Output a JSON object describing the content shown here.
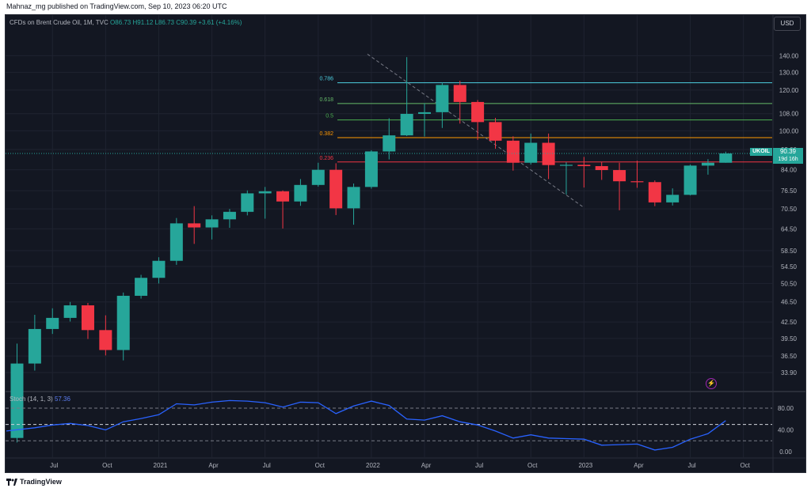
{
  "publisher": "Mahnaz_mg published on TradingView.com, Sep 10, 2023 06:20 UTC",
  "legend": {
    "symbol": "CFDs on Brent Crude Oil, 1M, TVC",
    "open": "O86.73",
    "high": "H91.12",
    "low": "L86.73",
    "close": "C90.39",
    "change": "+3.61 (+4.16%)"
  },
  "currency_button": "USD",
  "price_tag": {
    "symbol": "UKOIL",
    "price": "90.39",
    "countdown": "19d 16h"
  },
  "stoch_legend": {
    "label": "Stoch (14, 1, 3)",
    "value": "57.36"
  },
  "footer_brand": "TradingView",
  "colors": {
    "bg": "#131722",
    "up": "#26a69a",
    "down": "#f23645",
    "stoch": "#2962ff",
    "grid": "#1f2330"
  },
  "chart_data": [
    {
      "type": "candlestick",
      "title": "CFDs on Brent Crude Oil, 1M, TVC",
      "y_ticks": [
        "140.00",
        "130.00",
        "120.00",
        "108.00",
        "100.00",
        "92.00",
        "84.00",
        "76.50",
        "70.50",
        "64.50",
        "58.50",
        "54.50",
        "50.50",
        "46.50",
        "42.50",
        "39.50",
        "36.50",
        "33.90"
      ],
      "x_ticks": [
        "Jul",
        "Oct",
        "2021",
        "Apr",
        "Jul",
        "Oct",
        "2022",
        "Apr",
        "Jul",
        "Oct",
        "2023",
        "Apr",
        "Jul",
        "Oct"
      ],
      "scale": "log",
      "ylim": [
        32,
        150
      ],
      "ohlc": [
        {
          "t": "2020-05",
          "o": 25.3,
          "h": 38.6,
          "l": 24.8,
          "c": 35.3
        },
        {
          "t": "2020-06",
          "o": 35.3,
          "h": 43.9,
          "l": 34.2,
          "c": 41.2
        },
        {
          "t": "2020-07",
          "o": 41.2,
          "h": 45.2,
          "l": 40.3,
          "c": 43.3
        },
        {
          "t": "2020-08",
          "o": 43.3,
          "h": 46.5,
          "l": 42.6,
          "c": 45.8
        },
        {
          "t": "2020-09",
          "o": 45.8,
          "h": 46.3,
          "l": 39.4,
          "c": 41.0
        },
        {
          "t": "2020-10",
          "o": 41.0,
          "h": 43.8,
          "l": 36.6,
          "c": 37.5
        },
        {
          "t": "2020-11",
          "o": 37.5,
          "h": 48.5,
          "l": 35.8,
          "c": 47.8
        },
        {
          "t": "2020-12",
          "o": 47.8,
          "h": 52.5,
          "l": 47.2,
          "c": 51.8
        },
        {
          "t": "2021-01",
          "o": 51.8,
          "h": 56.8,
          "l": 50.5,
          "c": 55.9
        },
        {
          "t": "2021-02",
          "o": 55.9,
          "h": 67.7,
          "l": 54.9,
          "c": 66.1
        },
        {
          "t": "2021-03",
          "o": 66.1,
          "h": 71.4,
          "l": 60.3,
          "c": 64.9
        },
        {
          "t": "2021-04",
          "o": 64.9,
          "h": 68.5,
          "l": 61.5,
          "c": 67.3
        },
        {
          "t": "2021-05",
          "o": 67.3,
          "h": 70.5,
          "l": 64.8,
          "c": 69.6
        },
        {
          "t": "2021-06",
          "o": 69.6,
          "h": 76.6,
          "l": 68.5,
          "c": 75.6
        },
        {
          "t": "2021-07",
          "o": 75.6,
          "h": 77.8,
          "l": 67.5,
          "c": 76.3
        },
        {
          "t": "2021-08",
          "o": 76.3,
          "h": 76.6,
          "l": 64.6,
          "c": 72.9
        },
        {
          "t": "2021-09",
          "o": 72.9,
          "h": 80.6,
          "l": 71.5,
          "c": 78.5
        },
        {
          "t": "2021-10",
          "o": 78.5,
          "h": 86.7,
          "l": 77.9,
          "c": 84.0
        },
        {
          "t": "2021-11",
          "o": 84.0,
          "h": 86.5,
          "l": 68.6,
          "c": 70.7
        },
        {
          "t": "2021-12",
          "o": 70.7,
          "h": 79.0,
          "l": 65.7,
          "c": 77.8
        },
        {
          "t": "2022-01",
          "o": 77.8,
          "h": 91.7,
          "l": 77.2,
          "c": 91.2
        },
        {
          "t": "2022-02",
          "o": 91.2,
          "h": 105.8,
          "l": 88.0,
          "c": 98.0
        },
        {
          "t": "2022-03",
          "o": 98.0,
          "h": 139.1,
          "l": 97.7,
          "c": 107.9
        },
        {
          "t": "2022-04",
          "o": 107.9,
          "h": 113.1,
          "l": 97.5,
          "c": 108.7
        },
        {
          "t": "2022-05",
          "o": 108.7,
          "h": 124.0,
          "l": 101.3,
          "c": 122.8
        },
        {
          "t": "2022-06",
          "o": 122.8,
          "h": 125.1,
          "l": 103.3,
          "c": 113.8
        },
        {
          "t": "2022-07",
          "o": 113.8,
          "h": 114.8,
          "l": 96.0,
          "c": 104.0
        },
        {
          "t": "2022-08",
          "o": 104.0,
          "h": 106.0,
          "l": 92.3,
          "c": 95.7
        },
        {
          "t": "2022-09",
          "o": 95.7,
          "h": 97.6,
          "l": 83.7,
          "c": 86.7
        },
        {
          "t": "2022-10",
          "o": 86.7,
          "h": 98.8,
          "l": 86.0,
          "c": 94.8
        },
        {
          "t": "2022-11",
          "o": 94.8,
          "h": 98.8,
          "l": 80.6,
          "c": 85.8
        },
        {
          "t": "2022-12",
          "o": 85.8,
          "h": 86.9,
          "l": 75.2,
          "c": 85.9
        },
        {
          "t": "2023-01",
          "o": 85.9,
          "h": 89.0,
          "l": 77.6,
          "c": 85.4
        },
        {
          "t": "2023-02",
          "o": 85.4,
          "h": 87.0,
          "l": 80.3,
          "c": 83.9
        },
        {
          "t": "2023-03",
          "o": 83.9,
          "h": 86.7,
          "l": 70.1,
          "c": 79.8
        },
        {
          "t": "2023-04",
          "o": 79.8,
          "h": 87.5,
          "l": 77.5,
          "c": 79.5
        },
        {
          "t": "2023-05",
          "o": 79.5,
          "h": 80.1,
          "l": 71.4,
          "c": 72.6
        },
        {
          "t": "2023-06",
          "o": 72.6,
          "h": 77.3,
          "l": 71.6,
          "c": 75.1
        },
        {
          "t": "2023-07",
          "o": 75.1,
          "h": 86.0,
          "l": 74.9,
          "c": 85.6
        },
        {
          "t": "2023-08",
          "o": 85.6,
          "h": 88.1,
          "l": 82.2,
          "c": 86.7
        },
        {
          "t": "2023-09",
          "o": 86.7,
          "h": 91.1,
          "l": 86.7,
          "c": 90.4
        }
      ],
      "fib_levels": [
        {
          "label": "0.786",
          "price": 124.0,
          "color": "#4dd0e1"
        },
        {
          "label": "0.618",
          "price": 113.0,
          "color": "#66bb6a"
        },
        {
          "label": "0.5",
          "price": 105.0,
          "color": "#4caf50"
        },
        {
          "label": "0.382",
          "price": 97.0,
          "color": "#ff9800"
        },
        {
          "label": "0.236",
          "price": 87.0,
          "color": "#f23645"
        }
      ],
      "trendline": {
        "from": {
          "t": "2022-01",
          "price": 139
        },
        "to": {
          "t": "2022-12",
          "price": 71
        },
        "style": "dashed"
      },
      "last_price": 90.39
    },
    {
      "type": "line",
      "title": "Stoch (14, 1, 3)",
      "y_ticks": [
        "80.00",
        "40.00",
        "0.00"
      ],
      "bands": [
        80,
        50,
        20
      ],
      "ylim": [
        -5,
        100
      ],
      "values": [
        38,
        44,
        49,
        52,
        48,
        40,
        55,
        61,
        68,
        88,
        86,
        91,
        94,
        93,
        90,
        82,
        91,
        90,
        70,
        84,
        93,
        85,
        60,
        58,
        66,
        55,
        49,
        38,
        25,
        31,
        25,
        24,
        23,
        12,
        13,
        14,
        3,
        8,
        23,
        33,
        57
      ]
    }
  ]
}
